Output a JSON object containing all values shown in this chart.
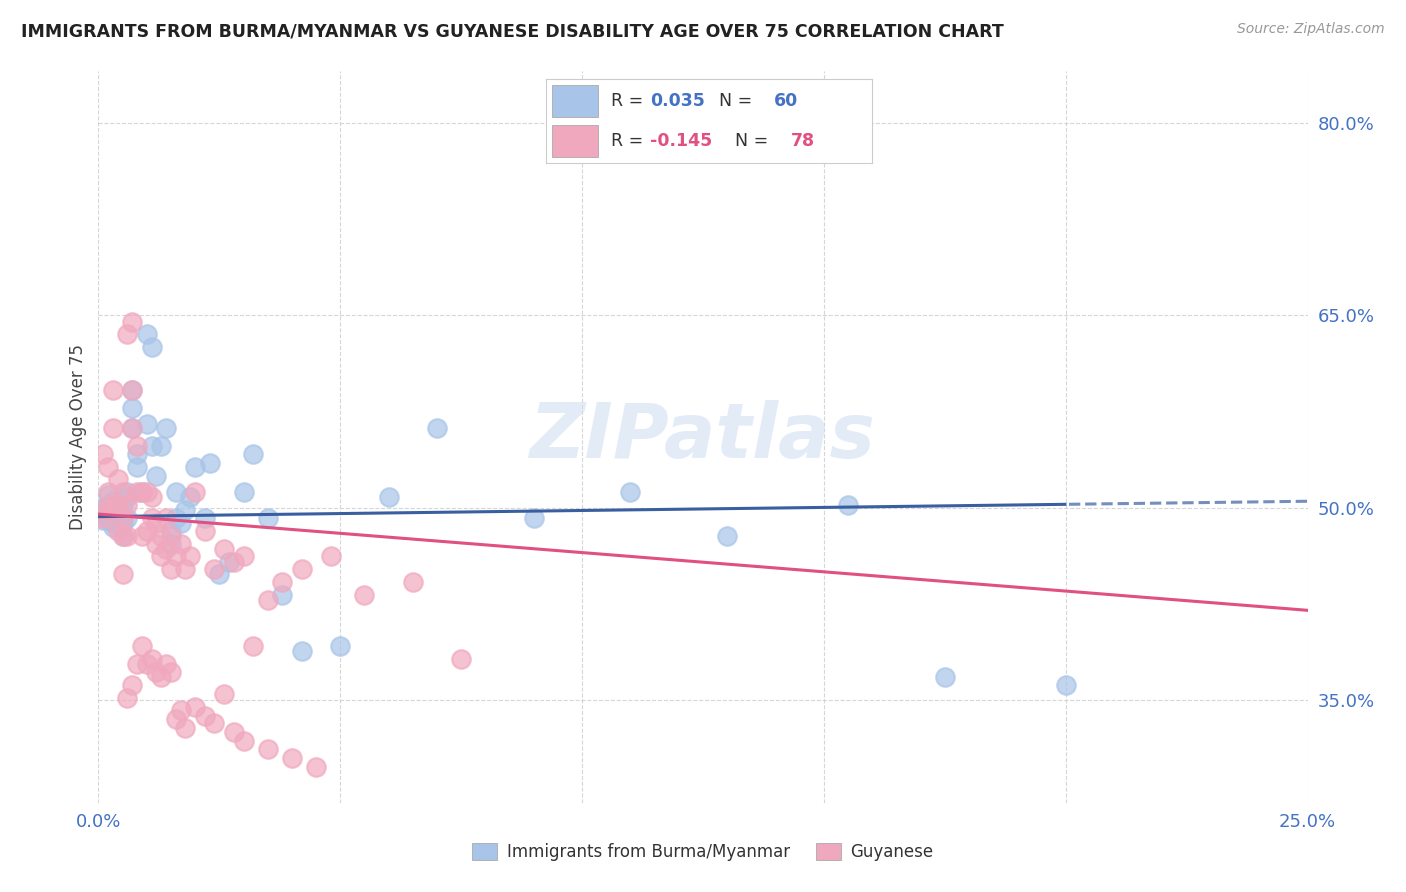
{
  "title": "IMMIGRANTS FROM BURMA/MYANMAR VS GUYANESE DISABILITY AGE OVER 75 CORRELATION CHART",
  "source": "Source: ZipAtlas.com",
  "ylabel": "Disability Age Over 75",
  "x_min": 0.0,
  "x_max": 0.25,
  "y_min": 0.27,
  "y_max": 0.84,
  "x_ticks": [
    0.0,
    0.05,
    0.1,
    0.15,
    0.2,
    0.25
  ],
  "x_tick_labels": [
    "0.0%",
    "",
    "",
    "",
    "",
    "25.0%"
  ],
  "y_ticks": [
    0.35,
    0.5,
    0.65,
    0.8
  ],
  "y_tick_labels": [
    "35.0%",
    "50.0%",
    "65.0%",
    "80.0%"
  ],
  "blue_R": "0.035",
  "blue_N": "60",
  "pink_R": "-0.145",
  "pink_N": "78",
  "blue_color": "#a8c4e8",
  "pink_color": "#f0a8be",
  "blue_line_color": "#3a5fa0",
  "pink_line_color": "#e05080",
  "watermark": "ZIPatlas",
  "blue_scatter_x": [
    0.001,
    0.001,
    0.002,
    0.002,
    0.002,
    0.003,
    0.003,
    0.003,
    0.004,
    0.004,
    0.004,
    0.005,
    0.005,
    0.005,
    0.006,
    0.006,
    0.006,
    0.007,
    0.007,
    0.007,
    0.008,
    0.008,
    0.009,
    0.01,
    0.01,
    0.011,
    0.011,
    0.012,
    0.013,
    0.014,
    0.015,
    0.015,
    0.016,
    0.016,
    0.017,
    0.018,
    0.019,
    0.02,
    0.022,
    0.023,
    0.025,
    0.027,
    0.03,
    0.032,
    0.035,
    0.038,
    0.042,
    0.05,
    0.06,
    0.07,
    0.09,
    0.11,
    0.13,
    0.155,
    0.175,
    0.2,
    0.001,
    0.002,
    0.003,
    0.004
  ],
  "blue_scatter_y": [
    0.495,
    0.5,
    0.49,
    0.5,
    0.51,
    0.485,
    0.495,
    0.505,
    0.488,
    0.495,
    0.502,
    0.478,
    0.488,
    0.502,
    0.512,
    0.492,
    0.508,
    0.562,
    0.578,
    0.592,
    0.532,
    0.542,
    0.512,
    0.565,
    0.635,
    0.548,
    0.625,
    0.525,
    0.548,
    0.562,
    0.472,
    0.482,
    0.492,
    0.512,
    0.488,
    0.498,
    0.508,
    0.532,
    0.492,
    0.535,
    0.448,
    0.458,
    0.512,
    0.542,
    0.492,
    0.432,
    0.388,
    0.392,
    0.508,
    0.562,
    0.492,
    0.512,
    0.478,
    0.502,
    0.368,
    0.362,
    0.49,
    0.495,
    0.488,
    0.492
  ],
  "pink_scatter_x": [
    0.001,
    0.001,
    0.001,
    0.002,
    0.002,
    0.002,
    0.003,
    0.003,
    0.003,
    0.004,
    0.004,
    0.004,
    0.005,
    0.005,
    0.005,
    0.006,
    0.006,
    0.006,
    0.007,
    0.007,
    0.007,
    0.008,
    0.008,
    0.009,
    0.009,
    0.01,
    0.01,
    0.011,
    0.011,
    0.012,
    0.012,
    0.013,
    0.013,
    0.014,
    0.014,
    0.015,
    0.015,
    0.016,
    0.017,
    0.018,
    0.019,
    0.02,
    0.022,
    0.024,
    0.026,
    0.028,
    0.03,
    0.032,
    0.035,
    0.038,
    0.042,
    0.048,
    0.055,
    0.065,
    0.075,
    0.005,
    0.006,
    0.007,
    0.008,
    0.009,
    0.01,
    0.011,
    0.012,
    0.013,
    0.014,
    0.015,
    0.016,
    0.017,
    0.018,
    0.02,
    0.022,
    0.024,
    0.026,
    0.028,
    0.03,
    0.035,
    0.04,
    0.045
  ],
  "pink_scatter_y": [
    0.492,
    0.542,
    0.498,
    0.498,
    0.512,
    0.532,
    0.502,
    0.562,
    0.592,
    0.482,
    0.502,
    0.522,
    0.478,
    0.492,
    0.512,
    0.478,
    0.502,
    0.635,
    0.562,
    0.592,
    0.645,
    0.512,
    0.548,
    0.478,
    0.512,
    0.482,
    0.512,
    0.492,
    0.508,
    0.472,
    0.488,
    0.462,
    0.478,
    0.468,
    0.492,
    0.452,
    0.478,
    0.462,
    0.472,
    0.452,
    0.462,
    0.512,
    0.482,
    0.452,
    0.468,
    0.458,
    0.462,
    0.392,
    0.428,
    0.442,
    0.452,
    0.462,
    0.432,
    0.442,
    0.382,
    0.448,
    0.352,
    0.362,
    0.378,
    0.392,
    0.378,
    0.382,
    0.372,
    0.368,
    0.378,
    0.372,
    0.335,
    0.342,
    0.328,
    0.345,
    0.338,
    0.332,
    0.355,
    0.325,
    0.318,
    0.312,
    0.305,
    0.298
  ]
}
